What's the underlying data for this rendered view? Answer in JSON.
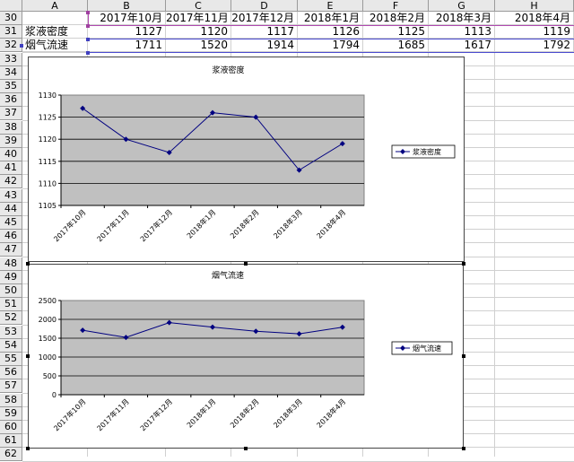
{
  "sheet": {
    "columns": [
      "A",
      "B",
      "C",
      "D",
      "E",
      "F",
      "G",
      "H"
    ],
    "rows": [
      "30",
      "31",
      "32",
      "33",
      "34",
      "35",
      "36",
      "37",
      "38",
      "39",
      "40",
      "41",
      "42",
      "43",
      "44",
      "45",
      "46",
      "47",
      "48",
      "49",
      "50",
      "51",
      "52",
      "53",
      "54",
      "55",
      "56",
      "57",
      "58",
      "59",
      "60",
      "61",
      "62"
    ],
    "header_row": [
      "",
      "2017年10月",
      "2017年11月",
      "2017年12月",
      "2018年1月",
      "2018年2月",
      "2018年3月",
      "2018年4月"
    ],
    "row31": [
      "浆液密度",
      "1127",
      "1120",
      "1117",
      "1126",
      "1125",
      "1113",
      "1119"
    ],
    "row32": [
      "烟气流速",
      "1711",
      "1520",
      "1914",
      "1794",
      "1685",
      "1617",
      "1792"
    ]
  },
  "chart_data": [
    {
      "type": "line",
      "title": "浆液密度",
      "categories": [
        "2017年10月",
        "2017年11月",
        "2017年12月",
        "2018年1月",
        "2018年2月",
        "2018年3月",
        "2018年4月"
      ],
      "series": [
        {
          "name": "浆液密度",
          "values": [
            1127,
            1120,
            1117,
            1126,
            1125,
            1113,
            1119
          ]
        }
      ],
      "yticks": [
        "1130",
        "1125",
        "1120",
        "1115",
        "1110",
        "1105"
      ],
      "ylim": [
        1105,
        1130
      ],
      "grid": true,
      "legend": "right",
      "plot_bg": "#c0c0c0",
      "line_color": "#000080"
    },
    {
      "type": "line",
      "title": "烟气流速",
      "categories": [
        "2017年10月",
        "2017年11月",
        "2017年12月",
        "2018年1月",
        "2018年2月",
        "2018年3月",
        "2018年4月"
      ],
      "series": [
        {
          "name": "烟气流速",
          "values": [
            1711,
            1520,
            1914,
            1794,
            1685,
            1617,
            1792
          ]
        }
      ],
      "yticks": [
        "2500",
        "2000",
        "1500",
        "1000",
        "500",
        "0"
      ],
      "ylim": [
        0,
        2500
      ],
      "grid": true,
      "legend": "right",
      "plot_bg": "#c0c0c0",
      "line_color": "#000080"
    }
  ]
}
